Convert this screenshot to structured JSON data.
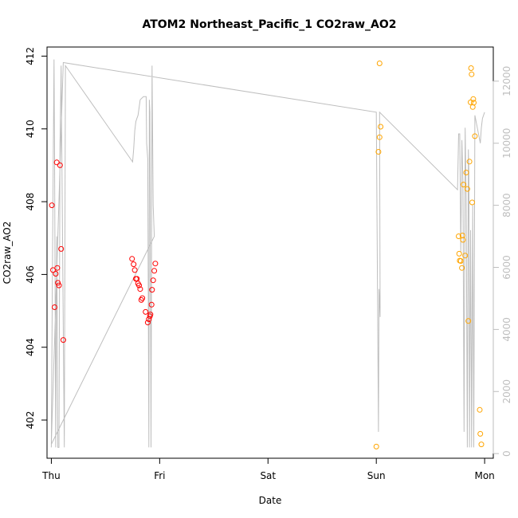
{
  "chart_data": {
    "type": "scatter",
    "title": "ATOM2 Northeast_Pacific_1 CO2raw_AO2",
    "xlabel": "Date",
    "ylabel": "CO2raw_AO2",
    "xlim": [
      -0.04,
      4.08
    ],
    "ylim": [
      400.95,
      412.25
    ],
    "right_ylim": [
      -150,
      13100
    ],
    "x_ticks": [
      {
        "value": 0,
        "label": "Thu"
      },
      {
        "value": 1,
        "label": "Fri"
      },
      {
        "value": 2,
        "label": "Sat"
      },
      {
        "value": 3,
        "label": "Sun"
      },
      {
        "value": 4,
        "label": "Mon"
      }
    ],
    "y_ticks": [
      402,
      404,
      406,
      408,
      410,
      412
    ],
    "right_y_ticks": [
      0,
      2000,
      4000,
      6000,
      8000,
      10000,
      12000
    ],
    "colors": {
      "series1": "#ff0000",
      "series2": "#ffa500",
      "line": "#bebebe",
      "axis": "#000000"
    },
    "series": [
      {
        "color": "#ff0000",
        "points": [
          [
            0.005,
            407.9
          ],
          [
            0.015,
            406.12
          ],
          [
            0.03,
            405.1
          ],
          [
            0.04,
            406.02
          ],
          [
            0.05,
            409.08
          ],
          [
            0.055,
            406.18
          ],
          [
            0.06,
            405.77
          ],
          [
            0.07,
            405.7
          ],
          [
            0.08,
            409.0
          ],
          [
            0.09,
            406.7
          ],
          [
            0.11,
            404.2
          ],
          [
            0.745,
            406.43
          ],
          [
            0.76,
            406.28
          ],
          [
            0.77,
            406.12
          ],
          [
            0.78,
            405.88
          ],
          [
            0.79,
            405.88
          ],
          [
            0.8,
            405.75
          ],
          [
            0.81,
            405.7
          ],
          [
            0.82,
            405.6
          ],
          [
            0.83,
            405.3
          ],
          [
            0.84,
            405.35
          ],
          [
            0.87,
            404.97
          ],
          [
            0.89,
            404.68
          ],
          [
            0.9,
            404.77
          ],
          [
            0.91,
            404.85
          ],
          [
            0.915,
            404.9
          ],
          [
            0.925,
            405.17
          ],
          [
            0.93,
            405.58
          ],
          [
            0.94,
            405.84
          ],
          [
            0.95,
            406.1
          ],
          [
            0.96,
            406.3
          ]
        ]
      },
      {
        "color": "#ffa500",
        "points": [
          [
            3.0,
            401.27
          ],
          [
            3.02,
            409.37
          ],
          [
            3.03,
            409.77
          ],
          [
            3.04,
            410.06
          ],
          [
            3.03,
            411.8
          ],
          [
            3.76,
            407.05
          ],
          [
            3.765,
            406.57
          ],
          [
            3.77,
            406.38
          ],
          [
            3.78,
            406.37
          ],
          [
            3.79,
            406.18
          ],
          [
            3.795,
            407.07
          ],
          [
            3.8,
            406.95
          ],
          [
            3.805,
            408.47
          ],
          [
            3.82,
            406.52
          ],
          [
            3.83,
            408.8
          ],
          [
            3.84,
            408.35
          ],
          [
            3.85,
            404.72
          ],
          [
            3.86,
            409.1
          ],
          [
            3.87,
            410.73
          ],
          [
            3.875,
            411.67
          ],
          [
            3.88,
            411.5
          ],
          [
            3.885,
            407.98
          ],
          [
            3.89,
            410.6
          ],
          [
            3.895,
            410.82
          ],
          [
            3.9,
            410.72
          ],
          [
            3.91,
            409.8
          ],
          [
            3.955,
            402.28
          ],
          [
            3.96,
            401.62
          ],
          [
            3.97,
            401.33
          ]
        ]
      }
    ],
    "right_axis_line": [
      [
        0.0,
        200
      ],
      [
        0.01,
        6000
      ],
      [
        0.025,
        12700
      ],
      [
        0.03,
        9500
      ],
      [
        0.04,
        200
      ],
      [
        0.05,
        7000
      ],
      [
        0.06,
        200
      ],
      [
        0.07,
        200
      ],
      [
        0.08,
        10000
      ],
      [
        0.09,
        12500
      ],
      [
        0.11,
        4000
      ],
      [
        0.12,
        200
      ],
      [
        0.13,
        12500
      ],
      [
        0.75,
        9400
      ],
      [
        0.76,
        9800
      ],
      [
        0.77,
        10400
      ],
      [
        0.78,
        10700
      ],
      [
        0.79,
        10800
      ],
      [
        0.8,
        10900
      ],
      [
        0.82,
        11400
      ],
      [
        0.85,
        11500
      ],
      [
        0.875,
        11500
      ],
      [
        0.88,
        10000
      ],
      [
        0.89,
        9500
      ],
      [
        0.9,
        200
      ],
      [
        0.905,
        11400
      ],
      [
        0.91,
        11000
      ],
      [
        0.92,
        200
      ],
      [
        0.93,
        12500
      ],
      [
        0.94,
        8000
      ],
      [
        0.95,
        7000
      ],
      [
        0.0,
        300
      ],
      [
        0.11,
        12600
      ],
      [
        3.0,
        11000
      ],
      [
        3.02,
        700
      ],
      [
        3.025,
        5300
      ],
      [
        3.035,
        4400
      ],
      [
        3.03,
        11000
      ],
      [
        3.75,
        8500
      ],
      [
        3.76,
        10300
      ],
      [
        3.77,
        10300
      ],
      [
        3.78,
        6500
      ],
      [
        3.79,
        10100
      ],
      [
        3.8,
        8800
      ],
      [
        3.81,
        700
      ],
      [
        3.82,
        10500
      ],
      [
        3.83,
        8200
      ],
      [
        3.84,
        200
      ],
      [
        3.85,
        9800
      ],
      [
        3.855,
        9000
      ],
      [
        3.86,
        200
      ],
      [
        3.87,
        7200
      ],
      [
        3.88,
        200
      ],
      [
        3.89,
        8000
      ],
      [
        3.9,
        200
      ],
      [
        3.91,
        10900
      ],
      [
        3.96,
        10000
      ],
      [
        3.97,
        10500
      ],
      [
        3.98,
        10800
      ],
      [
        4.0,
        11000
      ]
    ]
  }
}
